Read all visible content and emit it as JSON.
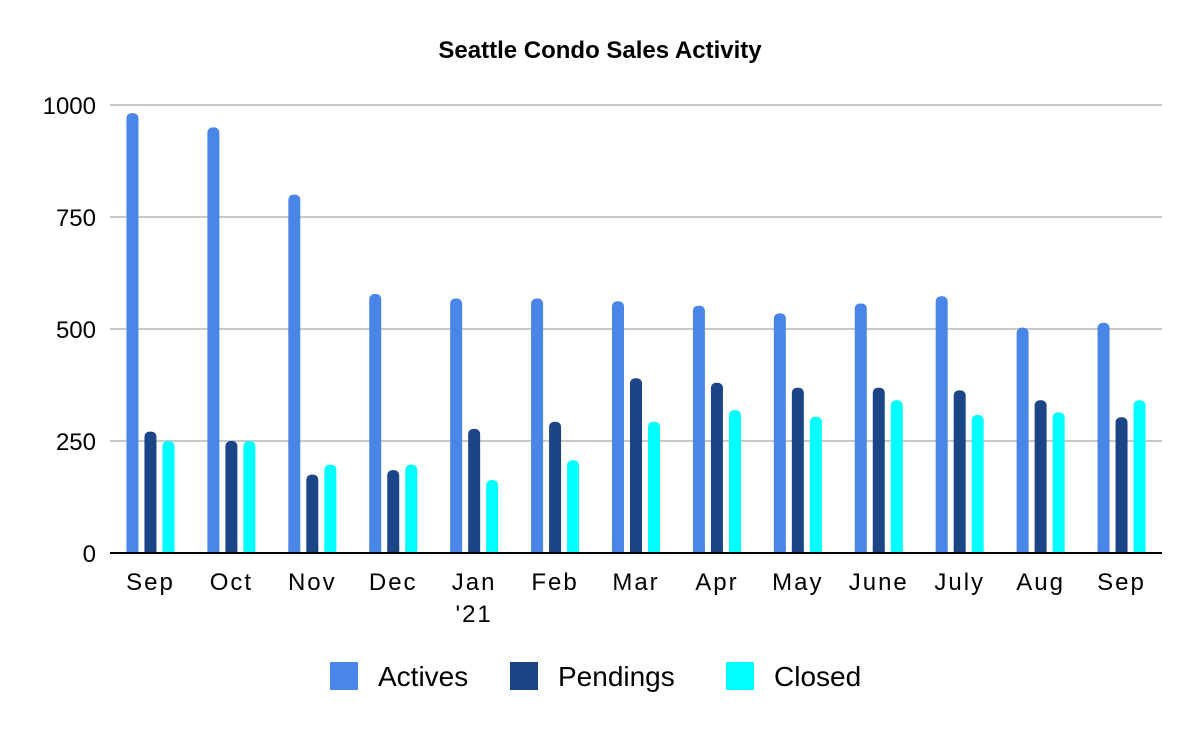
{
  "chart_data": {
    "type": "bar",
    "title": "Seattle Condo Sales Activity",
    "xlabel": "",
    "ylabel": "",
    "ylim": [
      0,
      1000
    ],
    "yticks": [
      "0",
      "250",
      "500",
      "750",
      "1000"
    ],
    "grid": true,
    "legend_position": "bottom",
    "categories": [
      "Sep",
      "Oct",
      "Nov",
      "Dec",
      "Jan\n'21",
      "Feb",
      "Mar",
      "Apr",
      "May",
      "June",
      "July",
      "Aug",
      "Sep"
    ],
    "series": [
      {
        "name": "Actives",
        "color": "#4a86e8",
        "values": [
          982,
          950,
          800,
          578,
          568,
          568,
          562,
          552,
          535,
          557,
          573,
          503,
          514
        ]
      },
      {
        "name": "Pendings",
        "color": "#1c4587",
        "values": [
          271,
          250,
          175,
          185,
          277,
          293,
          390,
          380,
          369,
          369,
          363,
          341,
          303
        ]
      },
      {
        "name": "Closed",
        "color": "#00ffff",
        "values": [
          250,
          250,
          197,
          197,
          163,
          207,
          293,
          319,
          304,
          341,
          308,
          314,
          341
        ]
      }
    ]
  }
}
